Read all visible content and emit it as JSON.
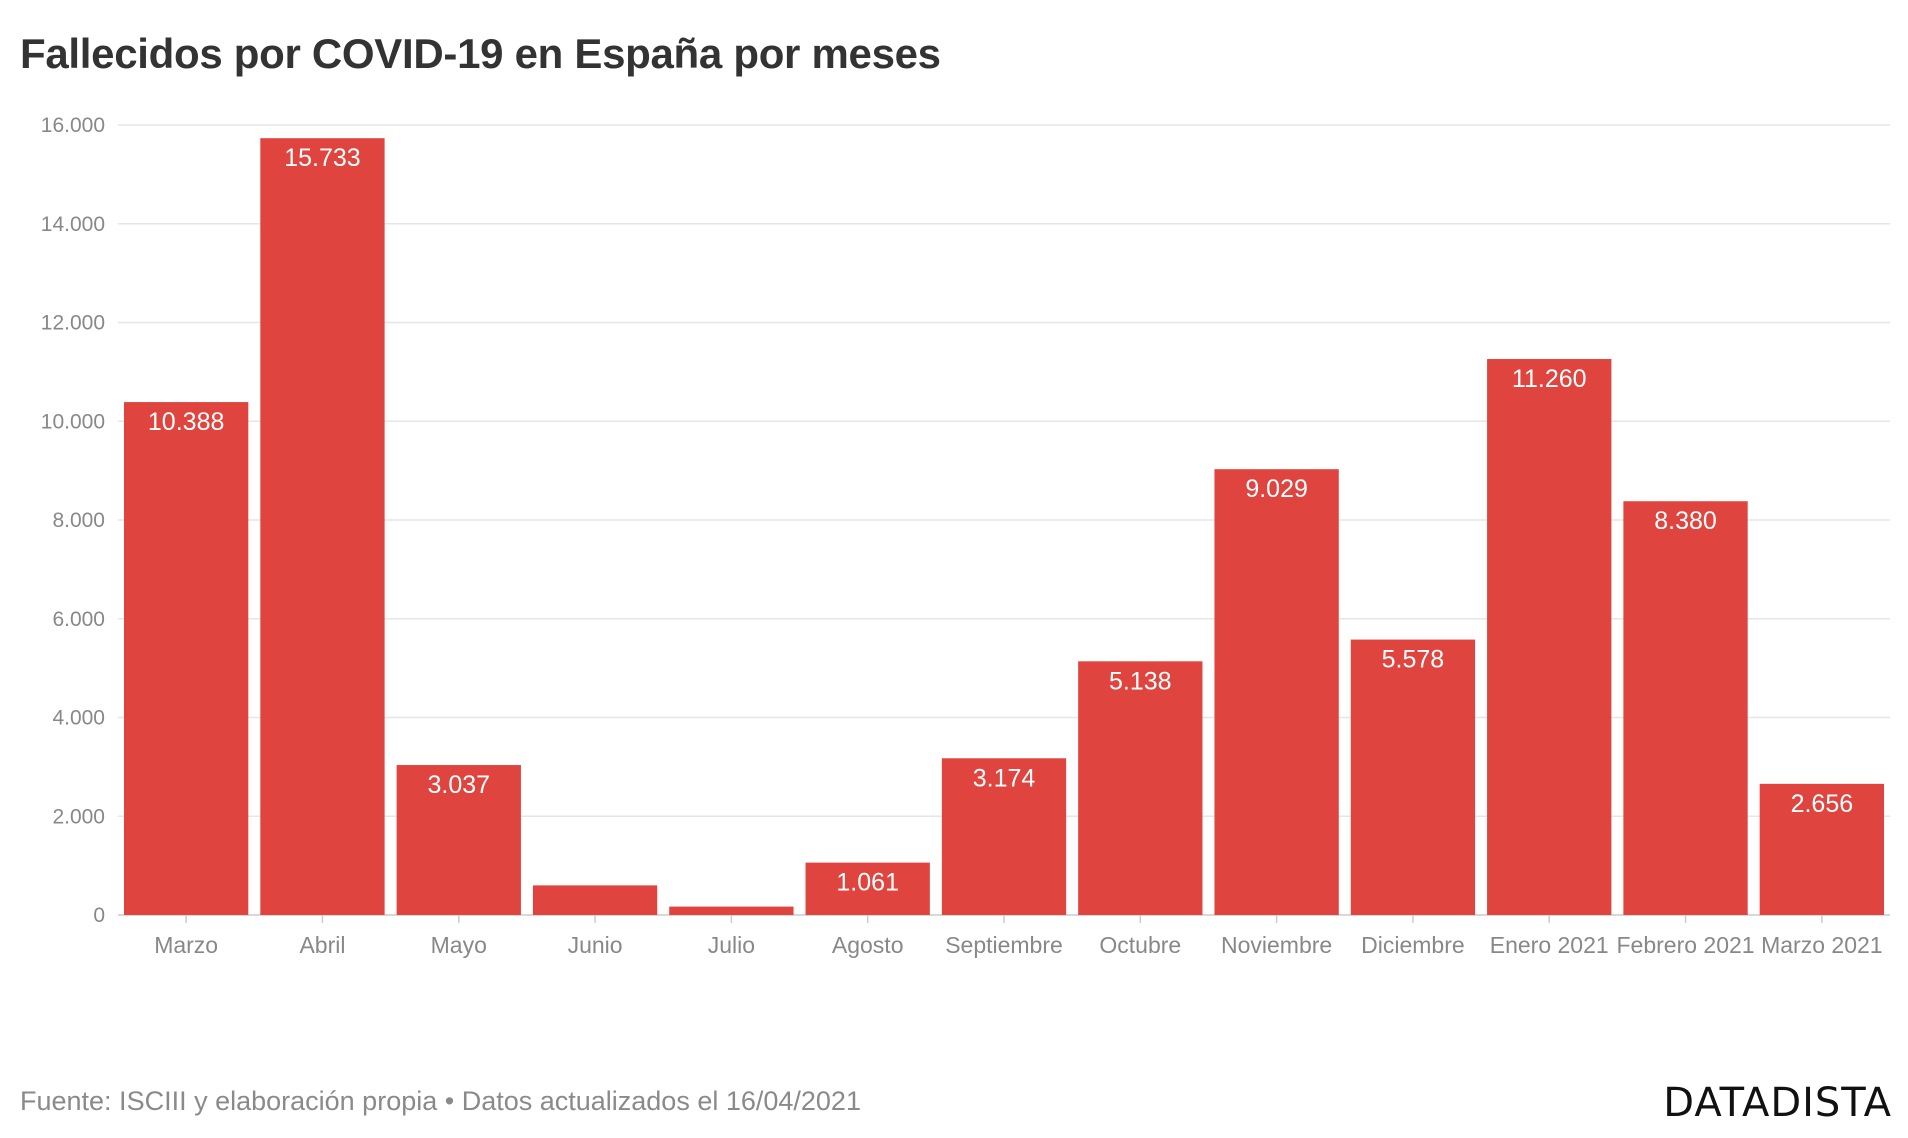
{
  "header": {
    "title": "Fallecidos por COVID-19 en España por meses"
  },
  "footer": {
    "source": "Fuente: ISCIII y elaboración propia • Datos actualizados el 16/04/2021"
  },
  "branding": {
    "logo_text": "DATADISTA"
  },
  "colors": {
    "bar": "#e0443e",
    "grid": "#e6e6e6",
    "axis_text": "#888888",
    "title": "#333333"
  },
  "chart_data": {
    "type": "bar",
    "title": "Fallecidos por COVID-19 en España por meses",
    "categories": [
      "Marzo",
      "Abril",
      "Mayo",
      "Junio",
      "Julio",
      "Agosto",
      "Septiembre",
      "Octubre",
      "Noviembre",
      "Diciembre",
      "Enero 2021",
      "Febrero 2021",
      "Marzo 2021"
    ],
    "values": [
      10388,
      15733,
      3037,
      600,
      170,
      1061,
      3174,
      5138,
      9029,
      5578,
      11260,
      8380,
      2656
    ],
    "data_labels": [
      "10.388",
      "15.733",
      "3.037",
      "",
      "",
      "1.061",
      "3.174",
      "5.138",
      "9.029",
      "5.578",
      "11.260",
      "8.380",
      "2.656"
    ],
    "y_ticks": [
      0,
      2000,
      4000,
      6000,
      8000,
      10000,
      12000,
      14000,
      16000
    ],
    "y_tick_labels": [
      "0",
      "2.000",
      "4.000",
      "6.000",
      "8.000",
      "10.000",
      "12.000",
      "14.000",
      "16.000"
    ],
    "ylim": [
      0,
      16000
    ],
    "grid": true,
    "legend": "none"
  }
}
